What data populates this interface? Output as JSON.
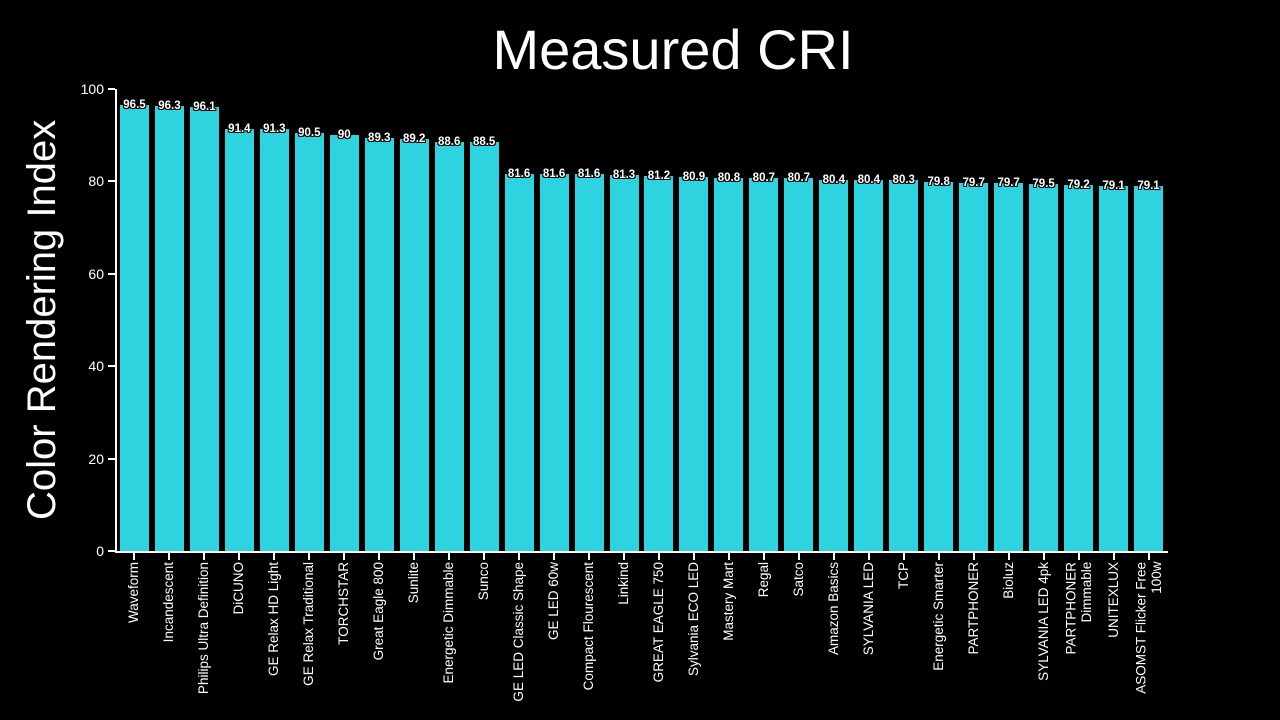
{
  "chart_data": {
    "type": "bar",
    "title": "Measured CRI",
    "xlabel": "",
    "ylabel": "Color Rendering Index",
    "ylim": [
      0,
      100
    ],
    "yticks": [
      0,
      20,
      40,
      60,
      80,
      100
    ],
    "grid": false,
    "legend": null,
    "bar_color": "#2DD4DF",
    "text_color": "#FFFFFF",
    "background_color": "#000000",
    "categories": [
      "Waveform",
      "Incandescent",
      "Philips Ultra Definition",
      "DiCUNO",
      "GE Relax HD Light",
      "GE Relax Traditional",
      "TORCHSTAR",
      "Great Eagle 800",
      "Sunlite",
      "Energetic Dimmable",
      "Sunco",
      "GE LED Classic Shape",
      "GE LED 60w",
      "Compact Flourescent",
      "Linkind",
      "GREAT EAGLE 750",
      "Sylvania ECO LED",
      "Mastery Mart",
      "Regal",
      "Satco",
      "Amazon Basics",
      "SYLVANIA LED",
      "TCP",
      "Energetic Smarter",
      "PARTPHONER",
      "Bioluz",
      "SYLVANIA LED 4pk",
      "PARTPHONER\nDimmable",
      "UNITEXLUX",
      "ASOMST Flicker Free\n100w"
    ],
    "values": [
      96.5,
      96.3,
      96.1,
      91.4,
      91.3,
      90.5,
      90,
      89.3,
      89.2,
      88.6,
      88.5,
      81.6,
      81.6,
      81.6,
      81.3,
      81.2,
      80.9,
      80.8,
      80.7,
      80.7,
      80.4,
      80.4,
      80.3,
      79.8,
      79.7,
      79.7,
      79.5,
      79.2,
      79.1,
      79.1
    ],
    "value_labels": [
      "96.5",
      "96.3",
      "96.1",
      "91.4",
      "91.3",
      "90.5",
      "90",
      "89.3",
      "89.2",
      "88.6",
      "88.5",
      "81.6",
      "81.6",
      "81.6",
      "81.3",
      "81.2",
      "80.9",
      "80.8",
      "80.7",
      "80.7",
      "80.4",
      "80.4",
      "80.3",
      "79.8",
      "79.7",
      "79.7",
      "79.5",
      "79.2",
      "79.1",
      "79.1"
    ]
  }
}
